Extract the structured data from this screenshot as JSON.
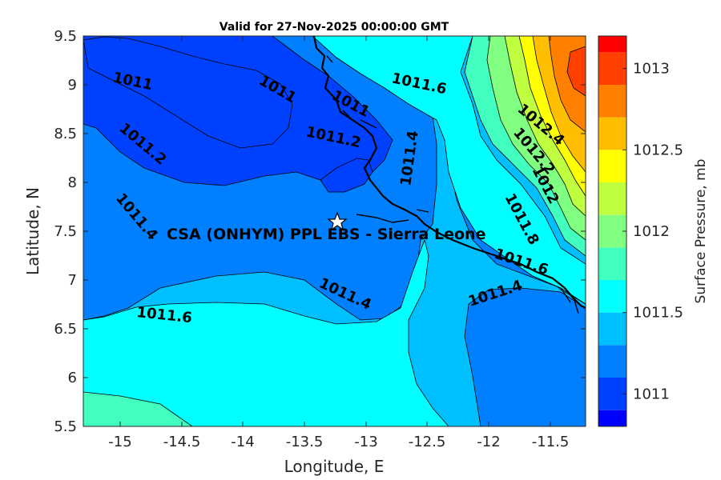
{
  "chart_data": {
    "type": "heatmap",
    "title": "Valid for 27-Nov-2025 00:00:00 GMT",
    "xlabel": "Longitude, E",
    "ylabel": "Latitude, N",
    "xlim": [
      -15.25,
      -11.25
    ],
    "ylim": [
      5.5,
      9.5
    ],
    "xticks": [
      "-15",
      "-14.5",
      "-14",
      "-13.5",
      "-13",
      "-12.5",
      "-12",
      "-11.5"
    ],
    "yticks": [
      "9.5",
      "9",
      "8.5",
      "8",
      "7.5",
      "7",
      "6.5",
      "6",
      "5.5"
    ],
    "colorbar": {
      "label": "Surface Pressure, mb",
      "range": [
        1010.8,
        1013.2
      ],
      "levels": [
        1010.8,
        1010.9,
        1011.1,
        1011.3,
        1011.5,
        1011.7,
        1011.9,
        1012.1,
        1012.3,
        1012.5,
        1012.7,
        1012.9,
        1013.1,
        1013.2
      ],
      "colors": [
        "#0000ff",
        "#0040ff",
        "#0080ff",
        "#00bfff",
        "#00ffff",
        "#40ffbf",
        "#80ff80",
        "#bfff40",
        "#ffff00",
        "#ffbf00",
        "#ff8000",
        "#ff4000",
        "#ff0000"
      ],
      "ticks": [
        "1011",
        "1011.5",
        "1012",
        "1012.5",
        "1013"
      ]
    },
    "contour_labels": [
      "1011",
      "1011",
      "1011.2",
      "1011.2",
      "1011.4",
      "1011.4",
      "1011.4",
      "1011.6",
      "1011.6",
      "1011.6",
      "1011.8",
      "1012",
      "1012.2",
      "1012.4",
      "1011.4",
      "1011"
    ],
    "site": {
      "name": "CSA (ONHYM) PPL EBS  - Sierra Leone",
      "lon": -13.23,
      "lat": 7.6
    }
  }
}
